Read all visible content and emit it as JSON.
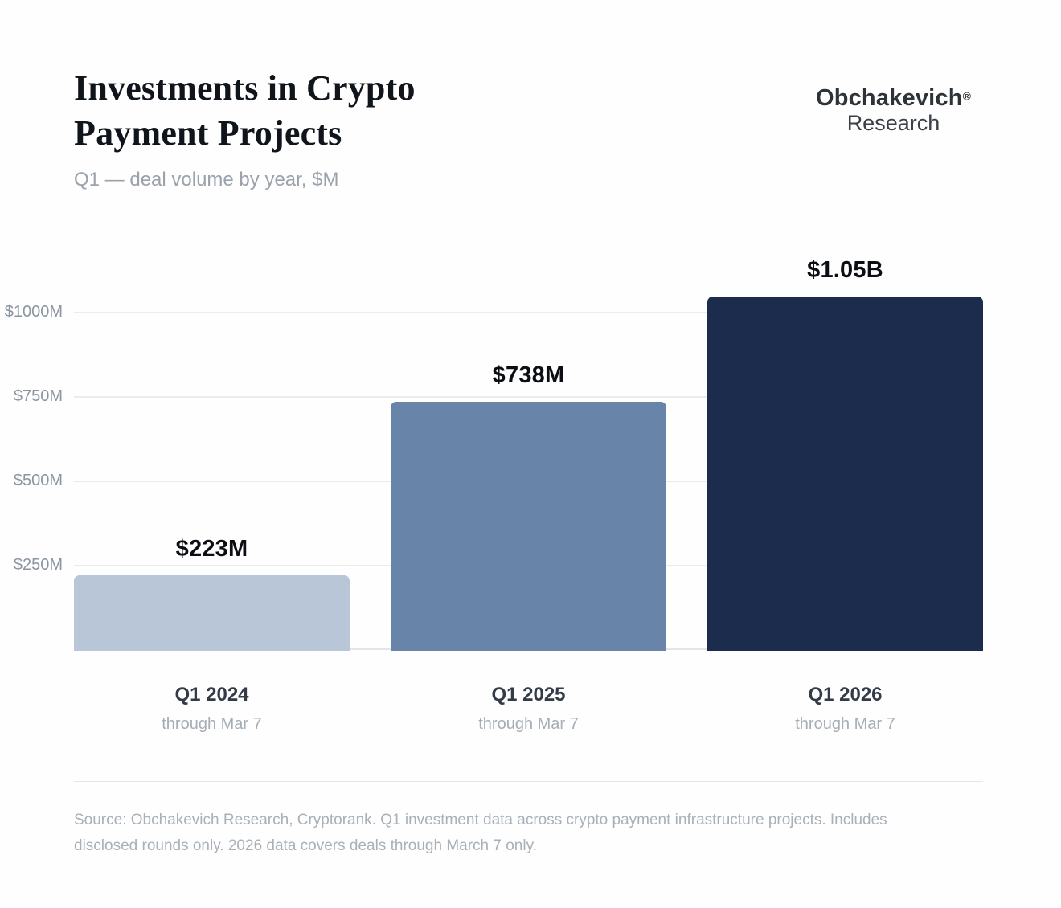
{
  "header": {
    "title_line1": "Investments in Crypto",
    "title_line2": "Payment Projects",
    "subtitle": "Q1 — deal volume by year, $M",
    "logo": {
      "name": "Obchakevich",
      "reg_mark": "®",
      "sub": "Research"
    }
  },
  "chart_data": {
    "type": "bar",
    "title": "Investments in Crypto Payment Projects",
    "subtitle": "Q1 — deal volume by year, $M",
    "unit": "$M",
    "categories": [
      "Q1 2024",
      "Q1 2025",
      "Q1 2026"
    ],
    "category_sublabels": [
      "through Mar 7",
      "through Mar 7",
      "through Mar 7"
    ],
    "values": [
      223,
      738,
      1050
    ],
    "value_labels": [
      "$223M",
      "$738M",
      "$1.05B"
    ],
    "bar_colors": [
      "#b9c6d8",
      "#6884a8",
      "#1c2c4d"
    ],
    "yticks": [
      {
        "value": 250,
        "label": "$250M"
      },
      {
        "value": 500,
        "label": "$500M"
      },
      {
        "value": 750,
        "label": "$750M"
      },
      {
        "value": 1000,
        "label": "$1000M"
      }
    ],
    "ylim": [
      0,
      1100
    ],
    "grid": true,
    "legend": false
  },
  "footer": {
    "source": "Source: Obchakevich Research, Cryptorank. Q1 investment data across crypto payment infrastructure projects. Includes disclosed rounds only. 2026 data covers deals through March 7 only."
  }
}
